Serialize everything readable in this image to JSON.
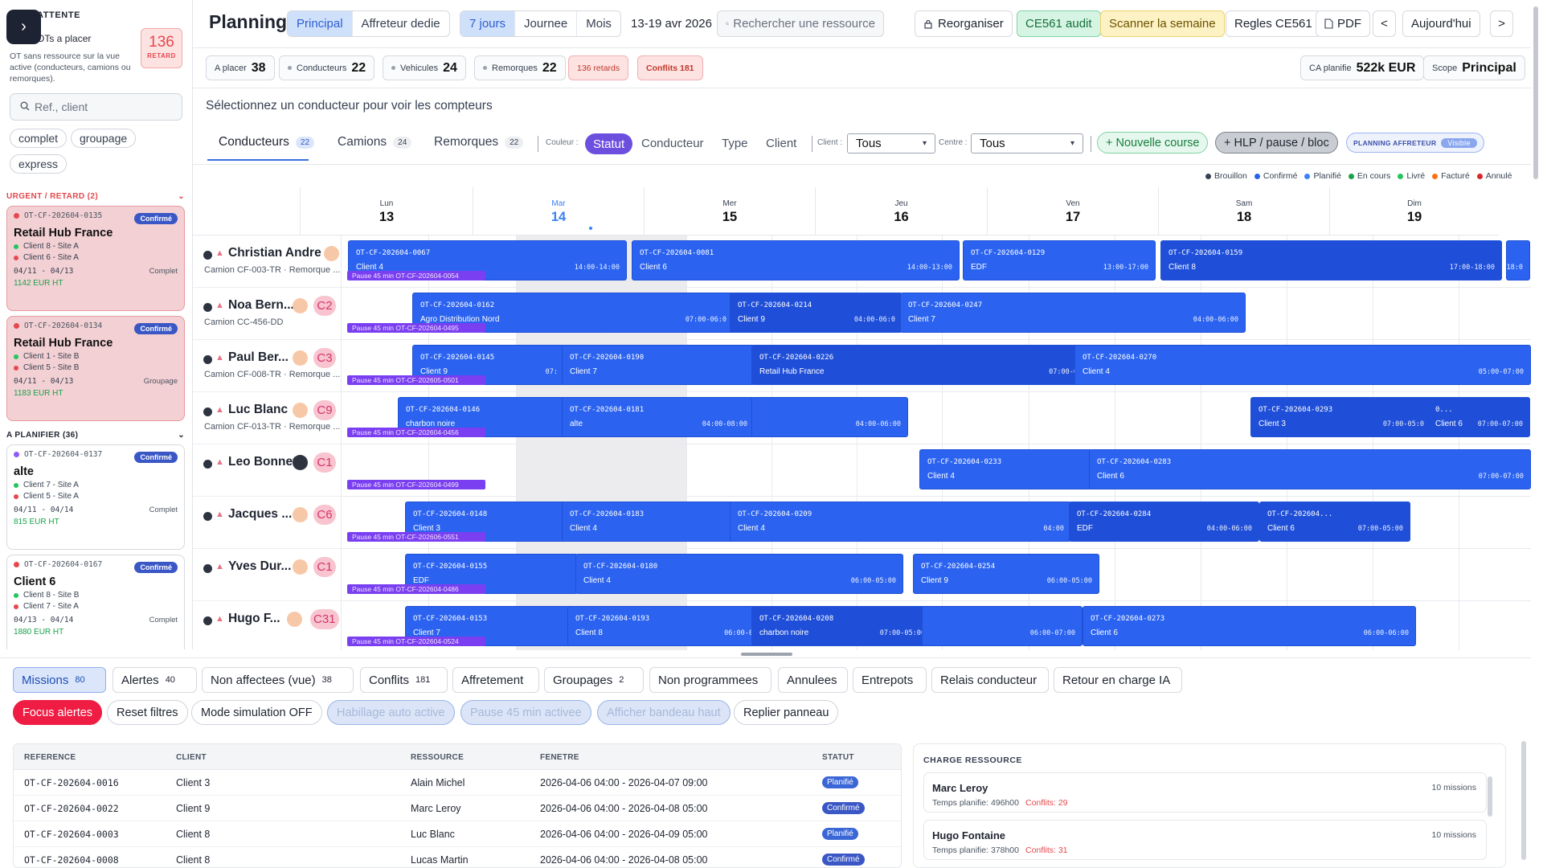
{
  "sidebar": {
    "title": "ATTENTE",
    "subtitle": "OTs a placer",
    "description": "OT sans ressource sur la vue active (conducteurs, camions ou remorques).",
    "retard_count": "136",
    "retard_label": "RETARD",
    "search_placeholder": "Ref., client",
    "chips": [
      "complet",
      "groupage",
      "express"
    ],
    "urgent_label": "URGENT / RETARD (2)",
    "planifier_label": "A PLANIFIER (36)",
    "cards": [
      {
        "ref": "OT-CF-202604-0135",
        "badge": "Confirmé",
        "name": "Retail Hub France",
        "site1": "Client 8 - Site A",
        "site2": "Client 6 - Site A",
        "dates": "04/11 - 04/13",
        "type": "Complet",
        "price": "1142 EUR HT"
      },
      {
        "ref": "OT-CF-202604-0134",
        "badge": "Confirmé",
        "name": "Retail Hub France",
        "site1": "Client 1 - Site B",
        "site2": "Client 5 - Site B",
        "dates": "04/11 - 04/13",
        "type": "Groupage",
        "price": "1183 EUR HT"
      },
      {
        "ref": "OT-CF-202604-0137",
        "badge": "Confirmé",
        "name": "alte",
        "site1": "Client 7 - Site A",
        "site2": "Client 5 - Site A",
        "dates": "04/11 - 04/14",
        "type": "Complet",
        "price": "815 EUR HT"
      },
      {
        "ref": "OT-CF-202604-0167",
        "badge": "Confirmé",
        "name": "Client 6",
        "site1": "Client 8 - Site B",
        "site2": "Client 7 - Site A",
        "dates": "04/13 - 04/14",
        "type": "Complet",
        "price": "1880 EUR HT"
      }
    ]
  },
  "header": {
    "title": "Planning",
    "view_tabs": [
      "Principal",
      "Affreteur dedie"
    ],
    "range_tabs": [
      "7 jours",
      "Journee",
      "Mois"
    ],
    "date_range": "13-19 avr 2026",
    "search_placeholder": "Rechercher une ressource",
    "reorganiser": "Reorganiser",
    "audit": "CE561 audit",
    "scanner": "Scanner la semaine",
    "regles": "Regles CE561",
    "pdf": "PDF",
    "prev": "<",
    "today": "Aujourd'hui",
    "next": ">"
  },
  "stats": {
    "a_placer_label": "A placer",
    "a_placer": "38",
    "conducteurs_label": "Conducteurs",
    "conducteurs": "22",
    "vehicules_label": "Vehicules",
    "vehicules": "24",
    "remorques_label": "Remorques",
    "remorques": "22",
    "retards": "136 retards",
    "conflits": "Conflits 181",
    "ca_label": "CA planifie",
    "ca": "522k EUR",
    "scope_label": "Scope",
    "scope": "Principal"
  },
  "hint": "Sélectionnez un conducteur pour voir les compteurs",
  "resource_tabs": [
    {
      "label": "Conducteurs",
      "count": "22"
    },
    {
      "label": "Camions",
      "count": "24"
    },
    {
      "label": "Remorques",
      "count": "22"
    }
  ],
  "color": {
    "label": "Couleur :",
    "options": [
      "Statut",
      "Conducteur",
      "Type",
      "Client"
    ]
  },
  "filters": {
    "client_label": "Client :",
    "client_value": "Tous",
    "centre_label": "Centre :",
    "centre_value": "Tous"
  },
  "actions": {
    "nouvelle_course": "+ Nouvelle course",
    "hlp": "+ HLP / pause / bloc",
    "affreteur": "PLANNING AFFRETEUR",
    "affreteur_state": "Visible"
  },
  "legend": [
    {
      "label": "Brouillon",
      "color": "#374151"
    },
    {
      "label": "Confirmé",
      "color": "#2563eb"
    },
    {
      "label": "Planifié",
      "color": "#3b82f6"
    },
    {
      "label": "En cours",
      "color": "#16a34a"
    },
    {
      "label": "Livré",
      "color": "#22c55e"
    },
    {
      "label": "Facturé",
      "color": "#f97316"
    },
    {
      "label": "Annulé",
      "color": "#dc2626"
    }
  ],
  "days": [
    {
      "name": "Lun",
      "num": "13"
    },
    {
      "name": "Mar",
      "num": "14"
    },
    {
      "name": "Mer",
      "num": "15"
    },
    {
      "name": "Jeu",
      "num": "16"
    },
    {
      "name": "Ven",
      "num": "17"
    },
    {
      "name": "Sam",
      "num": "18"
    },
    {
      "name": "Dim",
      "num": "19"
    }
  ],
  "drivers": [
    {
      "name": "Christian Andre",
      "sub": "Camion CF-003-TR · Remorque ...",
      "code": ""
    },
    {
      "name": "Noa Bern...",
      "sub": "Camion CC-456-DD",
      "code": "C2"
    },
    {
      "name": "Paul Ber...",
      "sub": "Camion CF-008-TR · Remorque ...",
      "code": "C3"
    },
    {
      "name": "Luc Blanc",
      "sub": "Camion CF-013-TR · Remorque ...",
      "code": "C9"
    },
    {
      "name": "Leo Bonnet",
      "sub": "",
      "code": "C1"
    },
    {
      "name": "Jacques ...",
      "sub": "",
      "code": "C6"
    },
    {
      "name": "Yves Dur...",
      "sub": "",
      "code": "C1"
    },
    {
      "name": "Hugo F...",
      "sub": "",
      "code": "C31"
    }
  ],
  "pauses": [
    "Pause 45 min OT-CF-202604-0054",
    "Pause 45 min OT-CF-202604-0495",
    "Pause 45 min OT-CF-202605-0501",
    "Pause 45 min OT-CF-202604-0456",
    "Pause 45 min OT-CF-202604-0499",
    "Pause 45 min OT-CF-202606-0551",
    "Pause 45 min OT-CF-202604-0486",
    "Pause 45 min OT-CF-202604-0524"
  ],
  "events": [
    {
      "ref": "OT-CF-202604-0067",
      "client": "Client 4",
      "time": "14:00-14:00"
    },
    {
      "ref": "OT-CF-202604-0081",
      "client": "Client 6",
      "time": "14:00-13:00"
    },
    {
      "ref": "OT-CF-202604-0129",
      "client": "EDF",
      "time": "13:00-17:00"
    },
    {
      "ref": "OT-CF-202604-0159",
      "client": "Client 8",
      "time": "17:00-18:00"
    },
    {
      "ref": "",
      "client": "",
      "time": "18:0"
    },
    {
      "ref": "OT-CF-202604-0162",
      "client": "Agro Distribution Nord",
      "time": "07:00-06:0"
    },
    {
      "ref": "OT-CF-202604-0214",
      "client": "Client 9",
      "time": "04:00-06:0"
    },
    {
      "ref": "OT-CF-202604-0247",
      "client": "Client 7",
      "time": "04:00-06:00"
    },
    {
      "ref": "OT-CF-202604-0145",
      "client": "Client 9",
      "time": "07:"
    },
    {
      "ref": "OT-CF-202604-0190",
      "client": "Client 7",
      "time": ""
    },
    {
      "ref": "OT-CF-202604-0226",
      "client": "Retail Hub France",
      "time": "07:00-0"
    },
    {
      "ref": "OT-CF-202604-0270",
      "client": "Client 4",
      "time": "05:00-07:00"
    },
    {
      "ref": "OT-CF-202604-0146",
      "client": "charbon noire",
      "time": ""
    },
    {
      "ref": "OT-CF-202604-0181",
      "client": "alte",
      "time": "04:00-08:00"
    },
    {
      "ref": "",
      "client": "",
      "time": "04:00-06:00"
    },
    {
      "ref": "OT-CF-202604-0293",
      "client": "Client 3",
      "time": "07:00-05:0"
    },
    {
      "ref": "0...",
      "client": "Client 6",
      "time": "07:00-07:00"
    },
    {
      "ref": "OT-CF-202604-0233",
      "client": "Client 4",
      "time": ""
    },
    {
      "ref": "OT-CF-202604-0283",
      "client": "Client 6",
      "time": "07:00-07:00"
    },
    {
      "ref": "OT-CF-202604-0148",
      "client": "Client 3",
      "time": ""
    },
    {
      "ref": "OT-CF-202604-0183",
      "client": "Client 4",
      "time": ""
    },
    {
      "ref": "OT-CF-202604-0209",
      "client": "Client 4",
      "time": "04:00"
    },
    {
      "ref": "OT-CF-202604-0284",
      "client": "EDF",
      "time": "04:00-06:00"
    },
    {
      "ref": "OT-CF-202604...",
      "client": "Client 6",
      "time": "07:00-05:00"
    },
    {
      "ref": "OT-CF-202604-0155",
      "client": "EDF",
      "time": ""
    },
    {
      "ref": "OT-CF-202604-0180",
      "client": "Client 4",
      "time": "06:00-05:00"
    },
    {
      "ref": "OT-CF-202604-0254",
      "client": "Client 9",
      "time": "06:00-05:00"
    },
    {
      "ref": "OT-CF-202604-0153",
      "client": "Client 7",
      "time": ""
    },
    {
      "ref": "OT-CF-202604-0193",
      "client": "Client 8",
      "time": "06:00-0"
    },
    {
      "ref": "OT-CF-202604-0208",
      "client": "charbon noire",
      "time": "07:00-05:00"
    },
    {
      "ref": "",
      "client": "",
      "time": "06:00-07:00"
    },
    {
      "ref": "OT-CF-202604-0273",
      "client": "Client 6",
      "time": "06:00-06:00"
    }
  ],
  "bottom_tabs": [
    {
      "label": "Missions",
      "count": "80"
    },
    {
      "label": "Alertes",
      "count": "40"
    },
    {
      "label": "Non affectees (vue)",
      "count": "38"
    },
    {
      "label": "Conflits",
      "count": "181"
    },
    {
      "label": "Affretement",
      "count": ""
    },
    {
      "label": "Groupages",
      "count": "2"
    },
    {
      "label": "Non programmees",
      "count": ""
    },
    {
      "label": "Annulees",
      "count": ""
    },
    {
      "label": "Entrepots",
      "count": ""
    },
    {
      "label": "Relais conducteur",
      "count": ""
    },
    {
      "label": "Retour en charge IA",
      "count": ""
    }
  ],
  "bottom_actions": [
    "Focus alertes",
    "Reset filtres",
    "Mode simulation OFF",
    "Habillage auto active",
    "Pause 45 min activee",
    "Afficher bandeau haut",
    "Replier panneau"
  ],
  "table": {
    "headers": [
      "REFERENCE",
      "CLIENT",
      "RESSOURCE",
      "FENETRE",
      "STATUT"
    ],
    "rows": [
      {
        "ref": "OT-CF-202604-0016",
        "client": "Client 3",
        "res": "Alain Michel",
        "win": "2026-04-06 04:00 - 2026-04-07 09:00",
        "status": "Planifié"
      },
      {
        "ref": "OT-CF-202604-0022",
        "client": "Client 9",
        "res": "Marc Leroy",
        "win": "2026-04-06 04:00 - 2026-04-08 05:00",
        "status": "Confirmé"
      },
      {
        "ref": "OT-CF-202604-0003",
        "client": "Client 8",
        "res": "Luc Blanc",
        "win": "2026-04-06 04:00 - 2026-04-09 05:00",
        "status": "Planifié"
      },
      {
        "ref": "OT-CF-202604-0008",
        "client": "Client 8",
        "res": "Lucas Martin",
        "win": "2026-04-06 04:00 - 2026-04-08 05:00",
        "status": "Confirmé"
      }
    ]
  },
  "charge": {
    "title": "CHARGE RESSOURCE",
    "items": [
      {
        "name": "Marc Leroy",
        "temps": "Temps planifie: 496h00",
        "conflits": "Conflits: 29",
        "missions": "10 missions"
      },
      {
        "name": "Hugo Fontaine",
        "temps": "Temps planifie: 378h00",
        "conflits": "Conflits: 31",
        "missions": "10 missions"
      }
    ]
  }
}
